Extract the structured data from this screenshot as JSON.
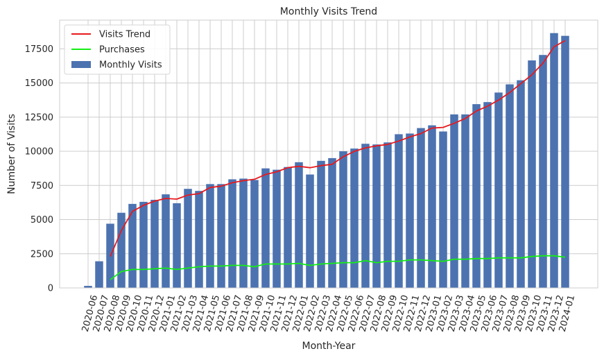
{
  "chart_data": {
    "type": "bar",
    "title": "Monthly Visits Trend",
    "xlabel": "Month-Year",
    "ylabel": "Number of Visits",
    "ylim": [
      0,
      19600
    ],
    "yticks": [
      0,
      2500,
      5000,
      7500,
      10000,
      12500,
      15000,
      17500
    ],
    "grid": true,
    "legend_position": "top-left",
    "categories": [
      "2020-06",
      "2020-07",
      "2020-08",
      "2020-09",
      "2020-10",
      "2020-11",
      "2020-12",
      "2021-01",
      "2021-02",
      "2021-03",
      "2021-04",
      "2021-05",
      "2021-06",
      "2021-07",
      "2021-08",
      "2021-09",
      "2021-10",
      "2021-11",
      "2021-12",
      "2022-01",
      "2022-02",
      "2022-03",
      "2022-04",
      "2022-05",
      "2022-06",
      "2022-07",
      "2022-08",
      "2022-09",
      "2022-10",
      "2022-11",
      "2022-12",
      "2023-01",
      "2023-02",
      "2023-03",
      "2023-04",
      "2023-05",
      "2023-06",
      "2023-07",
      "2023-08",
      "2023-09",
      "2023-10",
      "2023-11",
      "2023-12",
      "2024-01"
    ],
    "series": [
      {
        "name": "Monthly Visits",
        "kind": "bar",
        "color": "#4c72b0",
        "values": [
          150,
          1950,
          4700,
          5500,
          6150,
          6300,
          6450,
          6850,
          6200,
          7250,
          7100,
          7600,
          7600,
          7950,
          8000,
          7900,
          8750,
          8650,
          8850,
          9200,
          8300,
          9300,
          9500,
          10000,
          10200,
          10550,
          10500,
          10650,
          11250,
          11300,
          11700,
          11900,
          11450,
          12700,
          12700,
          13450,
          13600,
          14300,
          14900,
          15200,
          16650,
          17050,
          18650,
          18450
        ]
      },
      {
        "name": "Visits Trend",
        "kind": "line",
        "color": "#e8191c",
        "values": [
          null,
          null,
          2300,
          4200,
          5600,
          6050,
          6350,
          6550,
          6500,
          6800,
          6900,
          7350,
          7450,
          7700,
          7850,
          7950,
          8300,
          8500,
          8800,
          8900,
          8800,
          8950,
          9050,
          9600,
          10000,
          10250,
          10400,
          10500,
          10750,
          11050,
          11300,
          11700,
          11750,
          12050,
          12400,
          12950,
          13300,
          13750,
          14300,
          14950,
          15600,
          16450,
          17650,
          18100
        ]
      },
      {
        "name": "Purchases",
        "kind": "line",
        "color": "#13ef13",
        "values": [
          null,
          null,
          600,
          1200,
          1350,
          1350,
          1400,
          1450,
          1350,
          1450,
          1550,
          1600,
          1600,
          1650,
          1650,
          1550,
          1750,
          1750,
          1750,
          1800,
          1650,
          1750,
          1800,
          1850,
          1850,
          2000,
          1850,
          1950,
          1950,
          2050,
          2050,
          2000,
          1950,
          2100,
          2100,
          2150,
          2150,
          2200,
          2200,
          2200,
          2300,
          2350,
          2350,
          2250
        ]
      }
    ],
    "legend": [
      "Visits Trend",
      "Purchases",
      "Monthly Visits"
    ]
  }
}
